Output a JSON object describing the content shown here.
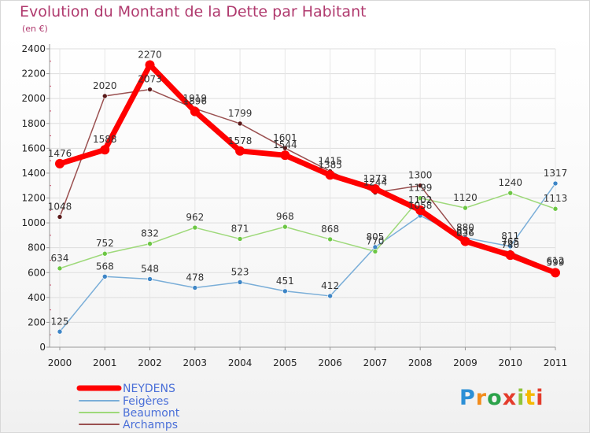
{
  "chart_data": {
    "type": "line",
    "title": "Evolution du Montant de la Dette par Habitant",
    "subtitle": "(en €)",
    "x": [
      "2000",
      "2001",
      "2002",
      "2003",
      "2004",
      "2005",
      "2006",
      "2007",
      "2008",
      "2009",
      "2010",
      "2011"
    ],
    "ylim": [
      0,
      2400
    ],
    "yticks": [
      0,
      200,
      400,
      600,
      800,
      1000,
      1200,
      1400,
      1600,
      1800,
      2000,
      2200,
      2400
    ],
    "grid": true,
    "legend_position": "bottom-left",
    "series": [
      {
        "name": "NEYDENS",
        "color": "#ff0000",
        "line_color": "#ff0000",
        "marker_color": "#ff0000",
        "width": 7,
        "marker": 6,
        "values": [
          1476,
          1588,
          2270,
          1896,
          1578,
          1544,
          1385,
          1273,
          1102,
          852,
          740,
          599
        ],
        "labels": [
          "1476",
          "1588",
          "2270",
          "1896",
          "1578",
          "1544",
          "1385",
          "1273",
          "1102",
          "852",
          "740",
          "599"
        ]
      },
      {
        "name": "Feigères",
        "color": "#6fa8dc",
        "line_color": "#7aaed8",
        "marker_color": "#3d85c6",
        "width": 1.5,
        "marker": 3,
        "values": [
          125,
          568,
          548,
          478,
          523,
          451,
          412,
          805,
          1058,
          880,
          811,
          1317
        ],
        "labels": [
          "125",
          "568",
          "548",
          "478",
          "523",
          "451",
          "412",
          "805",
          "1058",
          "880",
          "811",
          "1317"
        ]
      },
      {
        "name": "Beaumont",
        "color": "#93d56b",
        "line_color": "#9ed97a",
        "marker_color": "#6cc644",
        "width": 1.5,
        "marker": 3,
        "values": [
          634,
          752,
          832,
          962,
          871,
          968,
          868,
          770,
          1199,
          1120,
          1240,
          1113
        ],
        "labels": [
          "634",
          "752",
          "832",
          "962",
          "871",
          "968",
          "868",
          "770",
          "1199",
          "1120",
          "1240",
          "1113"
        ]
      },
      {
        "name": "Archamps",
        "color": "#8e3c3c",
        "line_color": "#9a5050",
        "marker_color": "#5a1a1a",
        "width": 1.5,
        "marker": 3,
        "values": [
          1048,
          2020,
          2073,
          1919,
          1799,
          1601,
          1415,
          1244,
          1300,
          836,
          765,
          612
        ],
        "labels": [
          "1048",
          "2020",
          "2073",
          "1919",
          "1799",
          "1601",
          "1415",
          "1244",
          "1300",
          "836",
          "765",
          "612"
        ]
      }
    ]
  },
  "logo": {
    "letters": [
      "P",
      "r",
      "o",
      "x",
      "i",
      "t",
      "i"
    ]
  }
}
